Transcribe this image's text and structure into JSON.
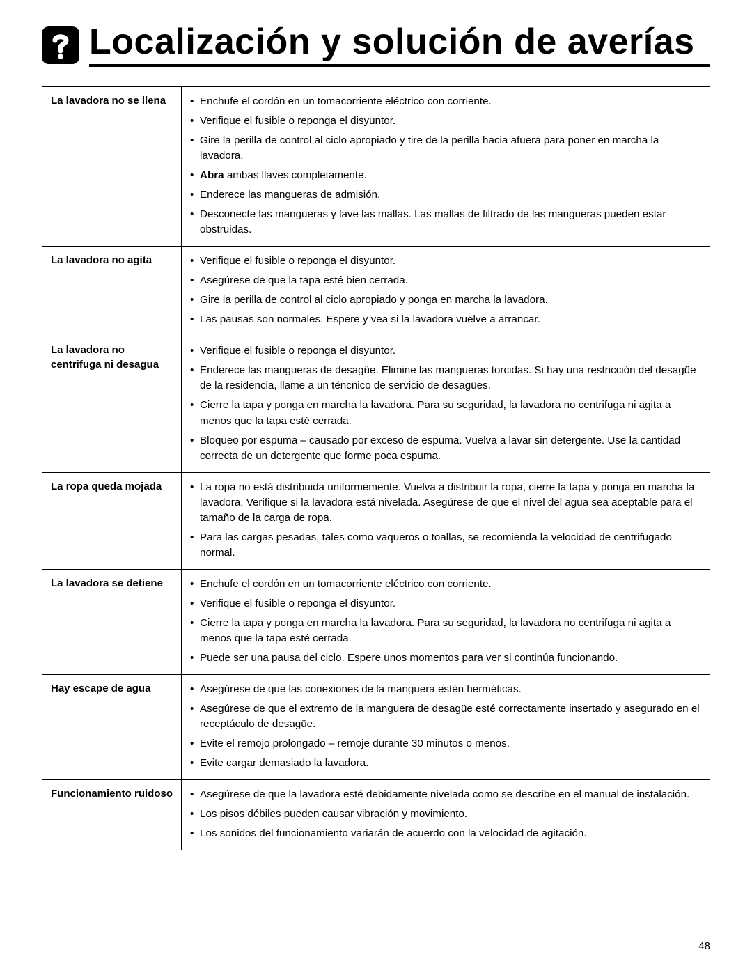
{
  "page": {
    "title": "Localización y solución de averías",
    "page_number": "48",
    "icon_name": "question-mark-icon"
  },
  "rows": [
    {
      "problem": "La lavadora no se llena",
      "items": [
        {
          "text": "Enchufe el cordón en un tomacorriente eléctrico con corriente."
        },
        {
          "text": "Verifique el fusible o reponga el disyuntor."
        },
        {
          "text": "Gire la perilla de control al ciclo apropiado y tire de la perilla hacia afuera para poner en marcha la lavadora."
        },
        {
          "bold_prefix": "Abra",
          "text": " ambas llaves completamente."
        },
        {
          "text": "Enderece las mangueras de admisión."
        },
        {
          "text": "Desconecte las mangueras y lave las mallas. Las mallas de filtrado de las mangueras pueden estar obstruidas."
        }
      ]
    },
    {
      "problem": "La lavadora no agita",
      "items": [
        {
          "text": "Verifique el fusible o reponga el disyuntor."
        },
        {
          "text": "Asegúrese de que la tapa esté bien cerrada."
        },
        {
          "text": "Gire la perilla de control al ciclo apropiado y ponga en marcha la lavadora."
        },
        {
          "text": "Las pausas son normales. Espere y vea si la lavadora vuelve a arrancar."
        }
      ]
    },
    {
      "problem": "La lavadora no centrifuga ni desagua",
      "items": [
        {
          "text": "Verifique el fusible o reponga el disyuntor."
        },
        {
          "text": "Enderece las mangueras de desagüe. Elimine las mangueras torcidas. Si hay una restricción del desagüe de la residencia, llame a un téncnico de servicio de desagües."
        },
        {
          "text": "Cierre la tapa y ponga en marcha la lavadora. Para su seguridad, la lavadora no centrifuga ni agita a menos que la tapa esté cerrada."
        },
        {
          "text": "Bloqueo por espuma – causado por exceso de espuma. Vuelva a lavar sin detergente. Use la cantidad correcta de un detergente que forme poca espuma."
        }
      ]
    },
    {
      "problem": "La ropa queda mojada",
      "items": [
        {
          "text": "La ropa no está distribuida uniformemente. Vuelva a distribuir la ropa, cierre la tapa y ponga en marcha la lavadora. Verifique si la lavadora está nivelada. Asegúrese de que el nivel del agua sea aceptable para el tamaño de la carga de ropa."
        },
        {
          "text": "Para las cargas pesadas, tales como vaqueros o toallas, se recomienda la velocidad de centrifugado normal."
        }
      ]
    },
    {
      "problem": "La lavadora se detiene",
      "items": [
        {
          "text": "Enchufe el cordón en un tomacorriente eléctrico con corriente."
        },
        {
          "text": "Verifique el fusible o reponga el disyuntor."
        },
        {
          "text": "Cierre la tapa y ponga en marcha la lavadora. Para su seguridad, la lavadora no centrifuga ni agita a menos que la tapa esté cerrada."
        },
        {
          "text": "Puede ser una pausa del ciclo. Espere unos momentos para ver si continúa funcionando."
        }
      ]
    },
    {
      "problem": "Hay escape de agua",
      "items": [
        {
          "text": "Asegúrese de que las conexiones de la manguera estén herméticas."
        },
        {
          "text": "Asegúrese de que el extremo de la manguera de desagüe esté correctamente insertado y asegurado en el receptáculo de desagüe."
        },
        {
          "text": "Evite el remojo prolongado – remoje durante 30 minutos o menos."
        },
        {
          "text": "Evite cargar demasiado la lavadora."
        }
      ]
    },
    {
      "problem": "Funcionamiento ruidoso",
      "items": [
        {
          "text": "Asegúrese de que la lavadora esté debidamente nivelada como se describe en el manual de instalación."
        },
        {
          "text": "Los pisos débiles pueden causar vibración y movimiento."
        },
        {
          "text": "Los sonidos del funcionamiento variarán de acuerdo con la velocidad de agitación."
        }
      ]
    }
  ]
}
